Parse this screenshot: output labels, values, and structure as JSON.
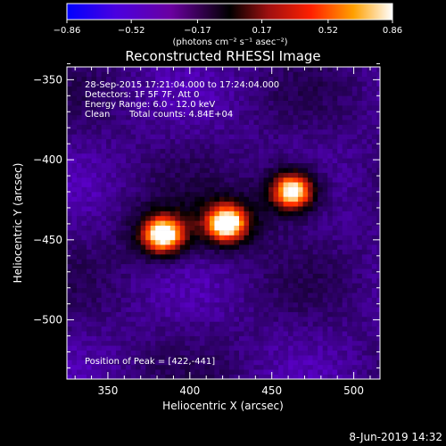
{
  "chart_data": {
    "type": "heatmap",
    "title": "Reconstructed RHESSI Image",
    "xlabel": "Heliocentric X (arcsec)",
    "ylabel": "Heliocentric Y (arcsec)",
    "xlim": [
      325,
      516
    ],
    "ylim": [
      -537,
      -342
    ],
    "x_ticks": [
      350,
      400,
      450,
      500
    ],
    "y_ticks": [
      -350,
      -400,
      -450,
      -500
    ],
    "x_tick_labels": [
      "350",
      "400",
      "450",
      "500"
    ],
    "y_tick_labels": [
      "−350",
      "−400",
      "−450",
      "−500"
    ],
    "colorbar": {
      "range": [
        -0.86,
        0.86
      ],
      "tick_labels": [
        "−0.86",
        "−0.52",
        "−0.17",
        "0.17",
        "0.52",
        "0.86"
      ],
      "units_text": "(photons cm⁻² s⁻¹ asec⁻²)",
      "colormap": [
        "#0000ff",
        "#5a00c8",
        "#2a0060",
        "#000000",
        "#8a1010",
        "#ff2a00",
        "#ff9a00",
        "#ffffff"
      ]
    },
    "sources": [
      {
        "x": 382,
        "y": -448,
        "peak": 0.86
      },
      {
        "x": 421,
        "y": -441,
        "peak": 0.86
      },
      {
        "x": 461,
        "y": -421,
        "peak": 0.78
      }
    ],
    "annotations": [
      "28-Sep-2015 17:21:04.000 to 17:24:04.000",
      "Detectors: 1F 5F 7F, Att 0",
      "Energy Range: 6.0 - 12.0 keV",
      "Clean",
      "Total counts: 4.84E+04"
    ],
    "peak_position_text": "Position of Peak = [422,-441]"
  },
  "footer_date": "8-Jun-2019 14:32"
}
